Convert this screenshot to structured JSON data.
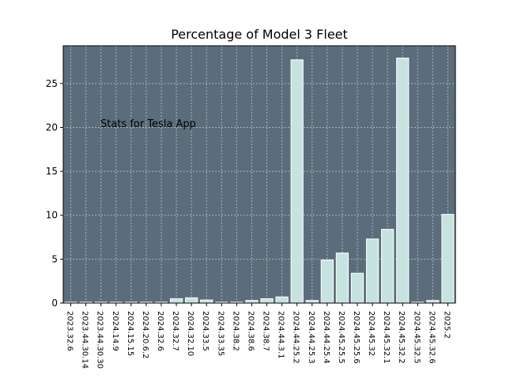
{
  "chart_data": {
    "type": "bar",
    "title": "Percentage of Model 3 Fleet",
    "xlabel": "",
    "ylabel": "",
    "annotation": "Stats for Tesla App",
    "categories": [
      "2023.32.6",
      "2023.44.30.14",
      "2023.44.30.30",
      "2024.14.9",
      "2024.15.15",
      "2024.20.6.2",
      "2024.32.6",
      "2024.32.7",
      "2024.32.10",
      "2024.33.5",
      "2024.33.35",
      "2024.38.2",
      "2024.38.6",
      "2024.38.7",
      "2024.44.3.1",
      "2024.44.25.2",
      "2024.44.25.3",
      "2024.44.25.4",
      "2024.45.25.5",
      "2024.45.25.6",
      "2024.45.32",
      "2024.45.32.1",
      "2024.45.32.2",
      "2024.45.32.5",
      "2024.45.32.6",
      "2025.2"
    ],
    "values": [
      0.1,
      0.1,
      0.1,
      0.1,
      0.1,
      0.1,
      0.1,
      0.5,
      0.6,
      0.35,
      0.1,
      0.1,
      0.3,
      0.5,
      0.7,
      27.7,
      0.3,
      4.9,
      5.7,
      3.4,
      7.3,
      8.4,
      27.9,
      0.1,
      0.3,
      10.1
    ],
    "ylim": [
      0,
      29.3
    ],
    "yticks": [
      0,
      5,
      10,
      15,
      20,
      25
    ],
    "grid": true,
    "colors": {
      "plot_background": "#5b6d7a",
      "bar_fill": "#c6e3e0",
      "bar_edge": "#ffffff",
      "grid": "#a9b5bd"
    }
  }
}
